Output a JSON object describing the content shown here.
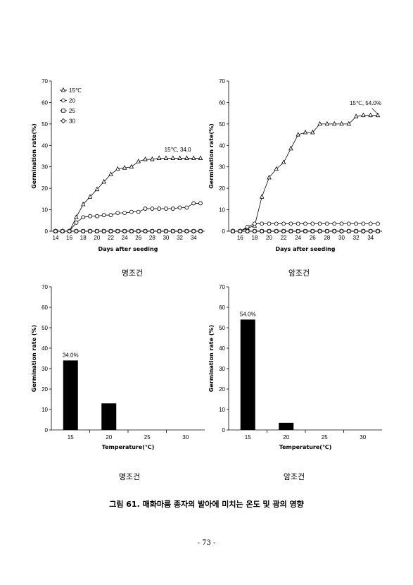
{
  "chart_data": [
    {
      "id": "c1",
      "type": "line",
      "xlabel": "Days after seeding",
      "ylabel": "Germination rate(%)",
      "x": [
        14,
        15,
        16,
        17,
        18,
        19,
        20,
        21,
        22,
        23,
        24,
        25,
        26,
        27,
        28,
        29,
        30,
        31,
        32,
        33,
        34,
        35
      ],
      "xticks": [
        14,
        16,
        18,
        20,
        22,
        24,
        26,
        28,
        30,
        32,
        34
      ],
      "xlim": [
        14,
        35
      ],
      "ylim": [
        0,
        70
      ],
      "yticks": [
        0,
        10,
        20,
        30,
        40,
        50,
        60,
        70
      ],
      "legend_position": "top-left",
      "series": [
        {
          "name": "15℃",
          "marker": "triangle",
          "values": [
            0,
            0,
            0,
            6.5,
            12.5,
            16,
            19.5,
            23,
            26.5,
            29,
            29.5,
            30,
            32.5,
            33.5,
            33.5,
            34,
            34,
            34,
            34,
            34,
            34,
            34
          ]
        },
        {
          "name": "20",
          "marker": "circle",
          "values": [
            0,
            0,
            0,
            4,
            6.5,
            7,
            7,
            7.5,
            7.5,
            8.5,
            8.5,
            9,
            9,
            10.5,
            10.5,
            10.5,
            10.5,
            10.5,
            11,
            11,
            13,
            13
          ]
        },
        {
          "name": "25",
          "marker": "square",
          "values": [
            0,
            0,
            0,
            0,
            0,
            0,
            0,
            0,
            0,
            0,
            0,
            0,
            0,
            0,
            0,
            0,
            0,
            0,
            0,
            0,
            0,
            0
          ]
        },
        {
          "name": "30",
          "marker": "diamond",
          "values": [
            0,
            0,
            0,
            0,
            0,
            0,
            0,
            0,
            0,
            0,
            0,
            0,
            0,
            0,
            0,
            0,
            0,
            0,
            0,
            0,
            0,
            0
          ]
        }
      ],
      "annotation": "15℃, 34.0"
    },
    {
      "id": "c2",
      "type": "line",
      "xlabel": "Days after seeding",
      "ylabel": "Germination rate(%)",
      "x": [
        15,
        16,
        17,
        18,
        19,
        20,
        21,
        22,
        23,
        24,
        25,
        26,
        27,
        28,
        29,
        30,
        31,
        32,
        33,
        34,
        35
      ],
      "xticks": [
        16,
        18,
        20,
        22,
        24,
        26,
        28,
        30,
        32,
        34
      ],
      "xlim": [
        15,
        35
      ],
      "ylim": [
        0,
        70
      ],
      "yticks": [
        0,
        10,
        20,
        30,
        40,
        50,
        60,
        70
      ],
      "series": [
        {
          "name": "15℃",
          "marker": "triangle",
          "values": [
            0,
            0,
            1.5,
            2.5,
            16,
            25,
            29,
            32,
            38.5,
            45,
            46,
            46,
            50,
            50,
            50,
            50,
            50,
            53.5,
            54,
            54,
            54
          ]
        },
        {
          "name": "20",
          "marker": "circle",
          "values": [
            0,
            0,
            2,
            3.5,
            3.5,
            3.5,
            3.5,
            3.5,
            3.5,
            3.5,
            3.5,
            3.5,
            3.5,
            3.5,
            3.5,
            3.5,
            3.5,
            3.5,
            3.5,
            3.5,
            3.5
          ]
        },
        {
          "name": "25",
          "marker": "square",
          "values": [
            0,
            0,
            0,
            0,
            0,
            0,
            0,
            0,
            0,
            0,
            0,
            0,
            0,
            0,
            0,
            0,
            0,
            0,
            0,
            0,
            0
          ]
        },
        {
          "name": "30",
          "marker": "diamond",
          "values": [
            0,
            0,
            0,
            0,
            0,
            0,
            0,
            0,
            0,
            0,
            0,
            0,
            0,
            0,
            0,
            0,
            0,
            0,
            0,
            0,
            0
          ]
        }
      ],
      "annotation": "15℃, 54.0%"
    },
    {
      "id": "c3",
      "type": "bar",
      "xlabel": "Temperature(℃)",
      "ylabel": "Germination rate (%)",
      "categories": [
        "15",
        "20",
        "25",
        "30"
      ],
      "values": [
        34.0,
        13.0,
        0,
        0
      ],
      "ylim": [
        0,
        70
      ],
      "yticks": [
        0,
        10,
        20,
        30,
        40,
        50,
        60,
        70
      ],
      "annotation": "34.0%"
    },
    {
      "id": "c4",
      "type": "bar",
      "xlabel": "Temperature(℃)",
      "ylabel": "Germination rate (%)",
      "categories": [
        "15",
        "20",
        "25",
        "30"
      ],
      "values": [
        54.0,
        3.5,
        0,
        0
      ],
      "ylim": [
        0,
        70
      ],
      "yticks": [
        0,
        10,
        20,
        30,
        40,
        50,
        60,
        70
      ],
      "annotation": "54.0%"
    }
  ],
  "subtitles": {
    "c1": "명조건",
    "c2": "암조건",
    "c3": "명조건",
    "c4": "암조건"
  },
  "caption": "그림 61. 매화마름 종자의 발아에 미치는 온도 및 광의 영향",
  "page_number": "- 73 -"
}
